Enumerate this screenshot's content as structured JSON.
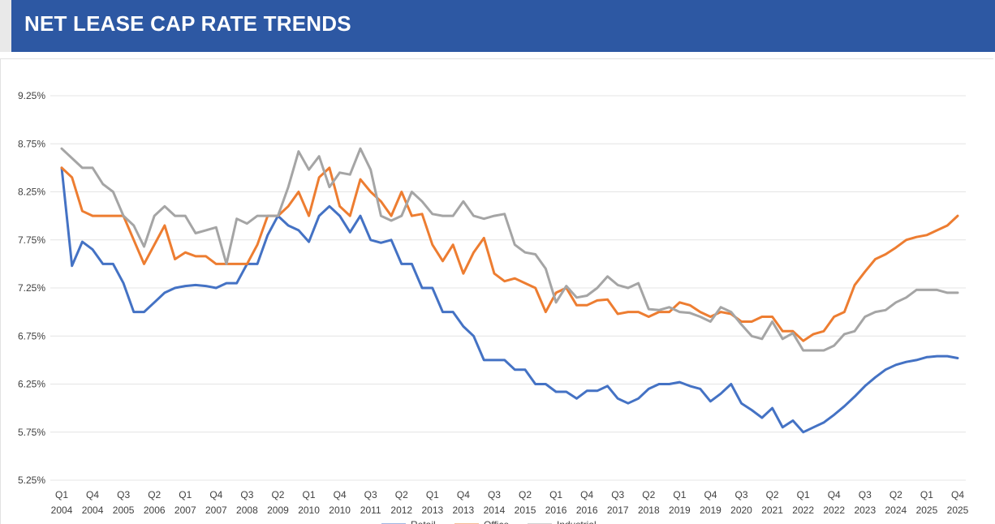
{
  "header": {
    "title": "NET LEASE CAP RATE TRENDS"
  },
  "chart_data": {
    "type": "line",
    "title": "NET LEASE CAP RATE TRENDS",
    "xlabel": "",
    "ylabel": "",
    "ylim": [
      5.25,
      9.25
    ],
    "yticks": [
      "9.25%",
      "8.75%",
      "8.25%",
      "7.75%",
      "7.25%",
      "6.75%",
      "6.25%",
      "5.75%",
      "5.25%"
    ],
    "grid": true,
    "legend_position": "bottom",
    "x_tick_labels": [
      [
        "Q1",
        "2004"
      ],
      [
        "Q4",
        "2004"
      ],
      [
        "Q3",
        "2005"
      ],
      [
        "Q2",
        "2006"
      ],
      [
        "Q1",
        "2007"
      ],
      [
        "Q4",
        "2007"
      ],
      [
        "Q3",
        "2008"
      ],
      [
        "Q2",
        "2009"
      ],
      [
        "Q1",
        "2010"
      ],
      [
        "Q4",
        "2010"
      ],
      [
        "Q3",
        "2011"
      ],
      [
        "Q2",
        "2012"
      ],
      [
        "Q1",
        "2013"
      ],
      [
        "Q4",
        "2013"
      ],
      [
        "Q3",
        "2014"
      ],
      [
        "Q2",
        "2015"
      ],
      [
        "Q1",
        "2016"
      ],
      [
        "Q4",
        "2016"
      ],
      [
        "Q3",
        "2017"
      ],
      [
        "Q2",
        "2018"
      ],
      [
        "Q1",
        "2019"
      ],
      [
        "Q4",
        "2019"
      ],
      [
        "Q3",
        "2020"
      ],
      [
        "Q2",
        "2021"
      ],
      [
        "Q1",
        "2022"
      ],
      [
        "Q4",
        "2022"
      ],
      [
        "Q3",
        "2023"
      ],
      [
        "Q2",
        "2024"
      ],
      [
        "Q1",
        "2025"
      ],
      [
        "Q4",
        "2025"
      ]
    ],
    "series": [
      {
        "name": "Retail",
        "color": "#4472c4",
        "values": [
          8.5,
          7.48,
          7.73,
          7.65,
          7.5,
          7.5,
          7.3,
          7.0,
          7.0,
          7.1,
          7.2,
          7.25,
          7.27,
          7.28,
          7.27,
          7.25,
          7.3,
          7.3,
          7.5,
          7.5,
          7.8,
          8.0,
          7.9,
          7.85,
          7.73,
          8.0,
          8.1,
          8.0,
          7.83,
          8.0,
          7.75,
          7.72,
          7.75,
          7.5,
          7.5,
          7.25,
          7.25,
          7.0,
          7.0,
          6.85,
          6.75,
          6.5,
          6.5,
          6.5,
          6.4,
          6.4,
          6.25,
          6.25,
          6.17,
          6.17,
          6.1,
          6.18,
          6.18,
          6.23,
          6.1,
          6.05,
          6.1,
          6.2,
          6.25,
          6.25,
          6.27,
          6.23,
          6.2,
          6.07,
          6.15,
          6.25,
          6.05,
          5.98,
          5.9,
          6.0,
          5.8,
          5.87,
          5.75,
          5.8,
          5.85,
          5.93,
          6.02,
          6.12,
          6.23,
          6.32,
          6.4,
          6.45,
          6.48,
          6.5,
          6.53,
          6.54,
          6.54,
          6.52
        ]
      },
      {
        "name": "Office",
        "color": "#ed7d31",
        "values": [
          8.5,
          8.4,
          8.05,
          8.0,
          8.0,
          8.0,
          8.0,
          7.75,
          7.5,
          7.7,
          7.9,
          7.55,
          7.62,
          7.58,
          7.58,
          7.5,
          7.5,
          7.5,
          7.5,
          7.7,
          8.0,
          8.0,
          8.1,
          8.25,
          8.0,
          8.4,
          8.5,
          8.1,
          8.0,
          8.38,
          8.25,
          8.15,
          8.0,
          8.25,
          8.0,
          8.02,
          7.7,
          7.53,
          7.7,
          7.4,
          7.62,
          7.77,
          7.4,
          7.32,
          7.35,
          7.3,
          7.25,
          7.0,
          7.2,
          7.25,
          7.07,
          7.07,
          7.12,
          7.13,
          6.98,
          7.0,
          7.0,
          6.95,
          7.0,
          7.0,
          7.1,
          7.07,
          7.0,
          6.95,
          7.0,
          6.98,
          6.9,
          6.9,
          6.95,
          6.95,
          6.8,
          6.8,
          6.7,
          6.77,
          6.8,
          6.95,
          7.0,
          7.28,
          7.42,
          7.55,
          7.6,
          7.67,
          7.75,
          7.78,
          7.8,
          7.85,
          7.9,
          8.0
        ]
      },
      {
        "name": "Industrial",
        "color": "#a5a5a5",
        "values": [
          8.7,
          8.6,
          8.5,
          8.5,
          8.33,
          8.25,
          8.0,
          7.9,
          7.68,
          8.0,
          8.1,
          8.0,
          8.0,
          7.82,
          7.85,
          7.88,
          7.5,
          7.97,
          7.92,
          8.0,
          8.0,
          8.0,
          8.3,
          8.67,
          8.48,
          8.62,
          8.3,
          8.45,
          8.43,
          8.7,
          8.48,
          8.0,
          7.95,
          8.0,
          8.25,
          8.15,
          8.02,
          8.0,
          8.0,
          8.15,
          8.0,
          7.97,
          8.0,
          8.02,
          7.7,
          7.62,
          7.6,
          7.45,
          7.1,
          7.27,
          7.15,
          7.17,
          7.25,
          7.37,
          7.28,
          7.25,
          7.3,
          7.03,
          7.02,
          7.05,
          7.0,
          6.99,
          6.95,
          6.9,
          7.05,
          7.0,
          6.87,
          6.75,
          6.72,
          6.9,
          6.72,
          6.78,
          6.6,
          6.6,
          6.6,
          6.65,
          6.77,
          6.8,
          6.95,
          7.0,
          7.02,
          7.1,
          7.15,
          7.23,
          7.23,
          7.23,
          7.2,
          7.2
        ]
      }
    ]
  }
}
